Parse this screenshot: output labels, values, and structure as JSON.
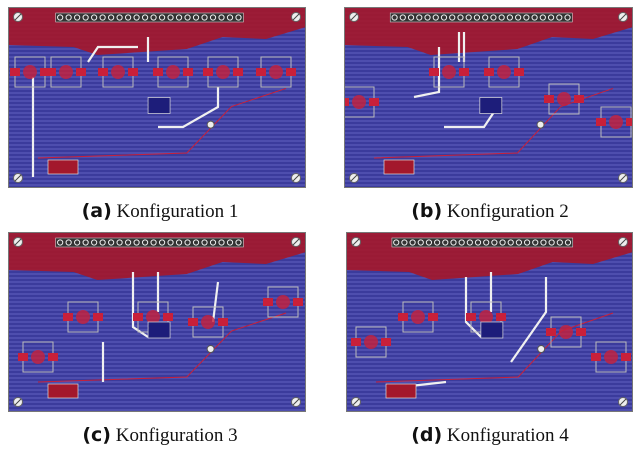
{
  "panels": [
    {
      "label": "(a)",
      "caption": "Konfiguration 1"
    },
    {
      "label": "(b)",
      "caption": "Konfiguration 2"
    },
    {
      "label": "(c)",
      "caption": "Konfiguration 3"
    },
    {
      "label": "(d)",
      "caption": "Konfiguration 4"
    }
  ]
}
